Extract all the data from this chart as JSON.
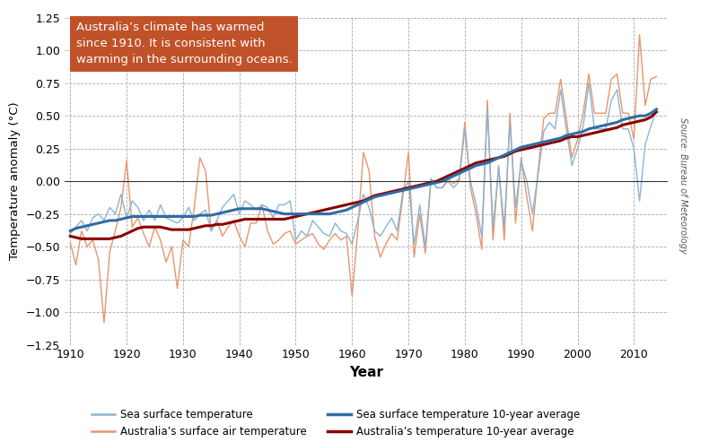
{
  "xlabel": "Year",
  "ylabel": "Temperature anomaly (°C)",
  "ylim": [
    -1.25,
    1.25
  ],
  "xlim": [
    1909,
    2016
  ],
  "yticks": [
    -1.25,
    -1.0,
    -0.75,
    -0.5,
    -0.25,
    0.0,
    0.25,
    0.5,
    0.75,
    1.0,
    1.25
  ],
  "xticks": [
    1910,
    1920,
    1930,
    1940,
    1950,
    1960,
    1970,
    1980,
    1990,
    2000,
    2010
  ],
  "annotation_text": "Australia’s climate has warmed\nsince 1910. It is consistent with\nwarming in the surrounding oceans.",
  "annotation_bg": "#c0522a",
  "annotation_text_color": "#ffffff",
  "sea_surface_color": "#8ab4d4",
  "sea_surface_avg_color": "#2e6da4",
  "air_temp_color": "#e8956d",
  "air_temp_avg_color": "#8B0000",
  "source_text": "Source: Bureau of Meteorology",
  "legend": [
    {
      "label": "Sea surface temperature",
      "color": "#8ab4d4",
      "lw": 1.5
    },
    {
      "label": "Sea surface temperature 10-year average",
      "color": "#2e6da4",
      "lw": 2.5
    },
    {
      "label": "Australia’s surface air temperature",
      "color": "#e8956d",
      "lw": 1.5
    },
    {
      "label": "Australia’s temperature 10-year average",
      "color": "#8B0000",
      "lw": 2.5
    }
  ],
  "years": [
    1910,
    1911,
    1912,
    1913,
    1914,
    1915,
    1916,
    1917,
    1918,
    1919,
    1920,
    1921,
    1922,
    1923,
    1924,
    1925,
    1926,
    1927,
    1928,
    1929,
    1930,
    1931,
    1932,
    1933,
    1934,
    1935,
    1936,
    1937,
    1938,
    1939,
    1940,
    1941,
    1942,
    1943,
    1944,
    1945,
    1946,
    1947,
    1948,
    1949,
    1950,
    1951,
    1952,
    1953,
    1954,
    1955,
    1956,
    1957,
    1958,
    1959,
    1960,
    1961,
    1962,
    1963,
    1964,
    1965,
    1966,
    1967,
    1968,
    1969,
    1970,
    1971,
    1972,
    1973,
    1974,
    1975,
    1976,
    1977,
    1978,
    1979,
    1980,
    1981,
    1982,
    1983,
    1984,
    1985,
    1986,
    1987,
    1988,
    1989,
    1990,
    1991,
    1992,
    1993,
    1994,
    1995,
    1996,
    1997,
    1998,
    1999,
    2000,
    2001,
    2002,
    2003,
    2004,
    2005,
    2006,
    2007,
    2008,
    2009,
    2010,
    2011,
    2012,
    2013,
    2014
  ],
  "sea_surface": [
    -0.4,
    -0.35,
    -0.3,
    -0.38,
    -0.28,
    -0.25,
    -0.3,
    -0.2,
    -0.25,
    -0.1,
    -0.28,
    -0.15,
    -0.2,
    -0.3,
    -0.22,
    -0.3,
    -0.18,
    -0.28,
    -0.3,
    -0.32,
    -0.28,
    -0.2,
    -0.3,
    -0.25,
    -0.22,
    -0.38,
    -0.3,
    -0.2,
    -0.15,
    -0.1,
    -0.25,
    -0.15,
    -0.18,
    -0.22,
    -0.18,
    -0.2,
    -0.28,
    -0.18,
    -0.18,
    -0.15,
    -0.45,
    -0.38,
    -0.42,
    -0.3,
    -0.35,
    -0.4,
    -0.42,
    -0.32,
    -0.38,
    -0.4,
    -0.48,
    -0.3,
    -0.1,
    -0.2,
    -0.38,
    -0.42,
    -0.35,
    -0.28,
    -0.38,
    -0.08,
    0.0,
    -0.48,
    -0.18,
    -0.5,
    0.02,
    -0.05,
    -0.05,
    0.0,
    -0.05,
    0.0,
    0.4,
    0.0,
    -0.18,
    -0.42,
    0.55,
    -0.35,
    0.1,
    -0.35,
    0.45,
    -0.2,
    0.15,
    0.0,
    -0.25,
    0.05,
    0.38,
    0.45,
    0.4,
    0.7,
    0.4,
    0.12,
    0.25,
    0.42,
    0.75,
    0.4,
    0.4,
    0.4,
    0.62,
    0.7,
    0.4,
    0.4,
    0.25,
    -0.15,
    0.28,
    0.42,
    0.55
  ],
  "sea_surface_avg": [
    -0.38,
    -0.36,
    -0.35,
    -0.34,
    -0.33,
    -0.32,
    -0.31,
    -0.3,
    -0.3,
    -0.29,
    -0.28,
    -0.27,
    -0.27,
    -0.27,
    -0.27,
    -0.27,
    -0.27,
    -0.27,
    -0.27,
    -0.27,
    -0.27,
    -0.27,
    -0.27,
    -0.26,
    -0.26,
    -0.26,
    -0.25,
    -0.24,
    -0.23,
    -0.22,
    -0.21,
    -0.21,
    -0.21,
    -0.21,
    -0.21,
    -0.22,
    -0.23,
    -0.24,
    -0.25,
    -0.25,
    -0.25,
    -0.25,
    -0.25,
    -0.25,
    -0.25,
    -0.25,
    -0.25,
    -0.24,
    -0.23,
    -0.22,
    -0.2,
    -0.18,
    -0.16,
    -0.14,
    -0.12,
    -0.11,
    -0.1,
    -0.09,
    -0.08,
    -0.07,
    -0.06,
    -0.05,
    -0.04,
    -0.03,
    -0.02,
    -0.01,
    0.0,
    0.02,
    0.04,
    0.06,
    0.08,
    0.1,
    0.12,
    0.13,
    0.14,
    0.16,
    0.18,
    0.2,
    0.22,
    0.24,
    0.26,
    0.27,
    0.28,
    0.29,
    0.3,
    0.31,
    0.32,
    0.33,
    0.35,
    0.36,
    0.37,
    0.38,
    0.4,
    0.41,
    0.42,
    0.43,
    0.44,
    0.45,
    0.47,
    0.48,
    0.49,
    0.5,
    0.5,
    0.52,
    0.55
  ],
  "air_temp": [
    -0.47,
    -0.64,
    -0.38,
    -0.5,
    -0.45,
    -0.6,
    -1.08,
    -0.54,
    -0.38,
    -0.2,
    0.16,
    -0.35,
    -0.28,
    -0.4,
    -0.5,
    -0.35,
    -0.45,
    -0.62,
    -0.5,
    -0.82,
    -0.45,
    -0.5,
    -0.2,
    0.18,
    0.08,
    -0.38,
    -0.3,
    -0.42,
    -0.35,
    -0.3,
    -0.42,
    -0.5,
    -0.32,
    -0.32,
    -0.18,
    -0.38,
    -0.48,
    -0.45,
    -0.4,
    -0.38,
    -0.48,
    -0.45,
    -0.42,
    -0.4,
    -0.48,
    -0.52,
    -0.45,
    -0.4,
    -0.45,
    -0.42,
    -0.88,
    -0.38,
    0.22,
    0.08,
    -0.42,
    -0.58,
    -0.48,
    -0.4,
    -0.45,
    -0.12,
    0.22,
    -0.58,
    -0.25,
    -0.55,
    0.02,
    -0.05,
    -0.05,
    0.02,
    -0.02,
    0.02,
    0.45,
    -0.05,
    -0.25,
    -0.52,
    0.62,
    -0.45,
    0.12,
    -0.45,
    0.52,
    -0.32,
    0.18,
    -0.12,
    -0.38,
    0.08,
    0.48,
    0.52,
    0.52,
    0.78,
    0.48,
    0.18,
    0.32,
    0.52,
    0.82,
    0.52,
    0.52,
    0.52,
    0.78,
    0.82,
    0.52,
    0.52,
    0.32,
    1.12,
    0.58,
    0.78,
    0.8
  ],
  "air_temp_avg": [
    -0.42,
    -0.43,
    -0.44,
    -0.44,
    -0.44,
    -0.44,
    -0.44,
    -0.44,
    -0.43,
    -0.42,
    -0.4,
    -0.38,
    -0.36,
    -0.35,
    -0.35,
    -0.35,
    -0.35,
    -0.36,
    -0.37,
    -0.37,
    -0.37,
    -0.37,
    -0.36,
    -0.35,
    -0.34,
    -0.34,
    -0.33,
    -0.33,
    -0.32,
    -0.31,
    -0.3,
    -0.29,
    -0.29,
    -0.29,
    -0.29,
    -0.29,
    -0.29,
    -0.29,
    -0.29,
    -0.28,
    -0.27,
    -0.26,
    -0.25,
    -0.24,
    -0.23,
    -0.22,
    -0.21,
    -0.2,
    -0.19,
    -0.18,
    -0.17,
    -0.16,
    -0.15,
    -0.13,
    -0.11,
    -0.1,
    -0.09,
    -0.08,
    -0.07,
    -0.06,
    -0.05,
    -0.04,
    -0.03,
    -0.02,
    -0.01,
    0.0,
    0.02,
    0.04,
    0.06,
    0.08,
    0.1,
    0.12,
    0.14,
    0.15,
    0.16,
    0.17,
    0.18,
    0.19,
    0.21,
    0.23,
    0.24,
    0.25,
    0.26,
    0.27,
    0.28,
    0.29,
    0.3,
    0.31,
    0.33,
    0.34,
    0.34,
    0.35,
    0.36,
    0.37,
    0.38,
    0.39,
    0.4,
    0.41,
    0.43,
    0.44,
    0.45,
    0.46,
    0.47,
    0.49,
    0.53
  ]
}
